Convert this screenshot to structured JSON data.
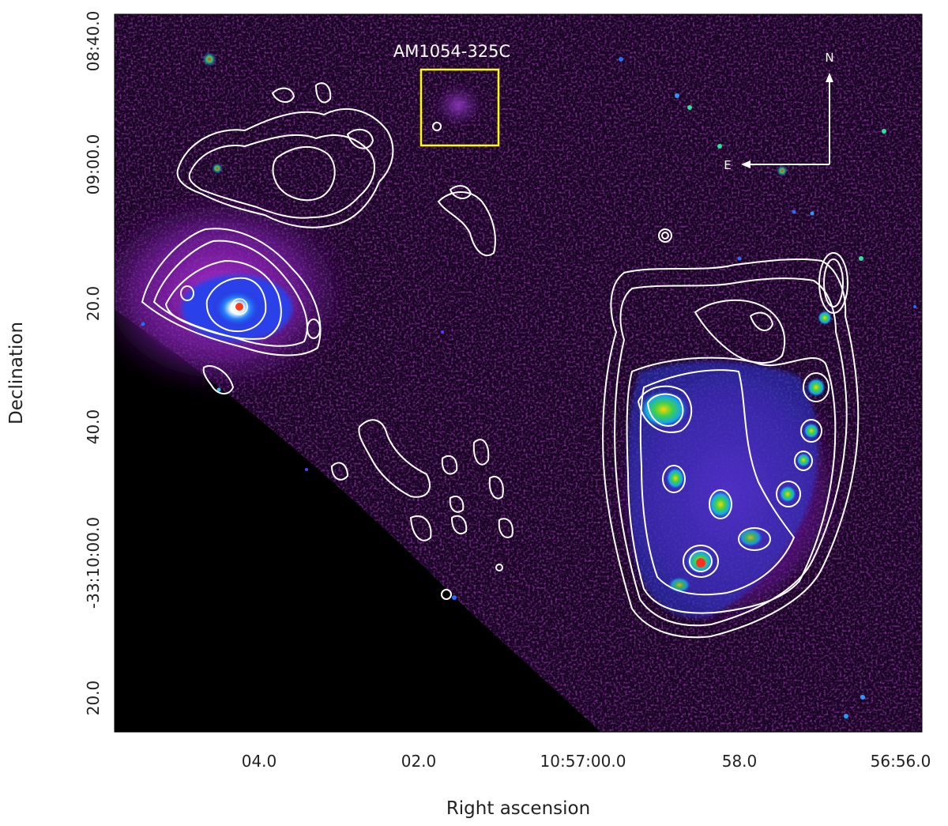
{
  "figure": {
    "x_axis_title": "Right ascension",
    "y_axis_title": "Declination",
    "x_ticks": [
      "04.0",
      "02.0",
      "10:57:00.0",
      "58.0",
      "56:56.0"
    ],
    "y_ticks": [
      "08:40.0",
      "09:00.0",
      "20.0",
      "40.0",
      "-33:10:00.0",
      "20.0"
    ],
    "object_label": "AM1054-325C",
    "compass": {
      "north": "N",
      "east": "E"
    },
    "colors": {
      "background": "#000000",
      "diffuse_emission": "#6a1a9a",
      "bright_core": "#1a3fe0",
      "contours": "#ffffff",
      "highlight_box": "#ffff00"
    }
  }
}
